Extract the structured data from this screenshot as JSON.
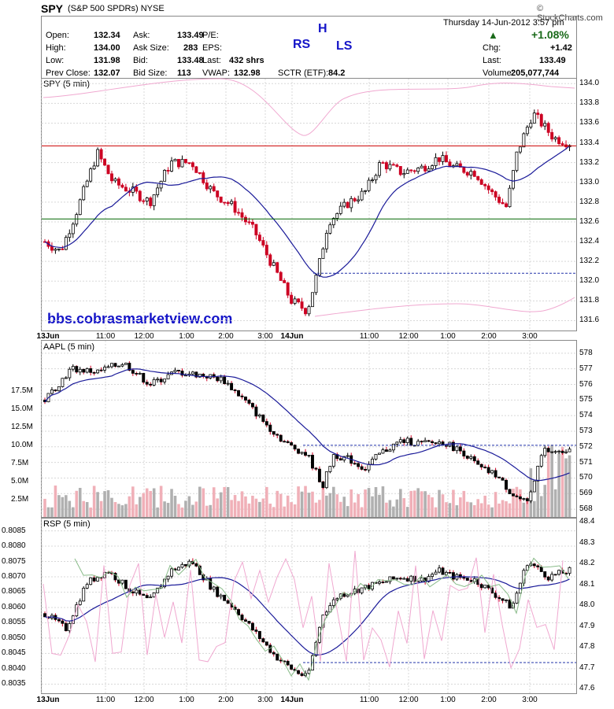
{
  "header": {
    "symbol": "SPY",
    "description": "(S&P 500 SPDRs)",
    "exchange": "NYSE",
    "brand": "© StockCharts.com",
    "datetime": "Thursday  14-Jun-2012  3:57 pm",
    "change_pct": "+1.08%",
    "quote": [
      {
        "label": "Open:",
        "value": "132.34"
      },
      {
        "label": "High:",
        "value": "134.00"
      },
      {
        "label": "Low:",
        "value": "131.98"
      },
      {
        "label": "Prev Close:",
        "value": "132.07"
      },
      {
        "label": "Ask:",
        "value": "133.49"
      },
      {
        "label": "Ask Size:",
        "value": "283"
      },
      {
        "label": "Bid:",
        "value": "133.48"
      },
      {
        "label": "Bid Size:",
        "value": "113"
      },
      {
        "label": "P/E:",
        "value": ""
      },
      {
        "label": "EPS:",
        "value": ""
      },
      {
        "label": "Last:",
        "value": "432 shrs"
      },
      {
        "label": "VWAP:",
        "value": "132.98"
      },
      {
        "label": "SCTR (ETF):",
        "value": "84.2"
      },
      {
        "label": "Chg:",
        "value": "+1.42"
      },
      {
        "label": "Last:",
        "value": "133.49"
      },
      {
        "label": "Volume:",
        "value": "205,077,744"
      }
    ],
    "annotation_rs": "RS",
    "annotation_h": "H",
    "annotation_ls": "LS"
  },
  "watermark": "bbs.cobrasmarketview.com",
  "colors": {
    "up": "#000000",
    "down": "#cc0022",
    "ma": "#1a1a99",
    "hline_red": "#cc0000",
    "hline_green": "#006600",
    "dashed": "#2233aa",
    "pink": "#f0a8d0",
    "green_line": "#88bb88",
    "vol_up": "#b0b0b0",
    "vol_down": "#f0b0b8"
  },
  "chart_data": [
    {
      "type": "candlestick",
      "title": "SPY (5 min)",
      "ylim": [
        131.5,
        134.05
      ],
      "yticks": [
        134.0,
        133.8,
        133.6,
        133.4,
        133.2,
        133.0,
        132.8,
        132.6,
        132.4,
        132.2,
        132.0,
        131.8,
        131.6
      ],
      "x_labels": [
        "13Jun",
        "11:00",
        "12:00",
        "1:00",
        "2:00",
        "3:00",
        "14Jun",
        "11:00",
        "12:00",
        "1:00",
        "2:00",
        "3:00"
      ],
      "horizontal_lines": [
        133.37,
        132.63
      ],
      "dashed_line": 132.08,
      "close_profile": [
        [
          0,
          132.4
        ],
        [
          0.03,
          132.3
        ],
        [
          0.06,
          132.7
        ],
        [
          0.1,
          133.3
        ],
        [
          0.13,
          133.0
        ],
        [
          0.17,
          132.9
        ],
        [
          0.2,
          132.8
        ],
        [
          0.24,
          133.2
        ],
        [
          0.28,
          133.2
        ],
        [
          0.32,
          132.9
        ],
        [
          0.36,
          132.75
        ],
        [
          0.4,
          132.5
        ],
        [
          0.44,
          132.1
        ],
        [
          0.47,
          131.8
        ],
        [
          0.5,
          131.7
        ],
        [
          0.52,
          132.1
        ],
        [
          0.54,
          132.6
        ],
        [
          0.58,
          132.8
        ],
        [
          0.61,
          132.9
        ],
        [
          0.64,
          133.2
        ],
        [
          0.68,
          133.1
        ],
        [
          0.72,
          133.15
        ],
        [
          0.75,
          133.25
        ],
        [
          0.78,
          133.15
        ],
        [
          0.82,
          133.1
        ],
        [
          0.85,
          132.9
        ],
        [
          0.88,
          132.75
        ],
        [
          0.9,
          133.3
        ],
        [
          0.93,
          133.7
        ],
        [
          0.97,
          133.45
        ],
        [
          1.0,
          133.4
        ]
      ]
    },
    {
      "type": "candlestick",
      "title": "AAPL (5 min)",
      "ylim": [
        567.5,
        578.8
      ],
      "yticks": [
        578,
        577,
        576,
        575,
        574,
        573,
        572,
        571,
        570,
        569,
        568
      ],
      "volume_ticks": [
        "17.5M",
        "15.0M",
        "12.5M",
        "10.0M",
        "7.5M",
        "5.0M",
        "2.5M"
      ],
      "dashed_line": 572.1,
      "close_profile": [
        [
          0,
          575.0
        ],
        [
          0.05,
          577.0
        ],
        [
          0.1,
          576.8
        ],
        [
          0.15,
          577.4
        ],
        [
          0.2,
          576.0
        ],
        [
          0.25,
          576.8
        ],
        [
          0.3,
          576.6
        ],
        [
          0.34,
          576.3
        ],
        [
          0.38,
          575.0
        ],
        [
          0.42,
          573.5
        ],
        [
          0.46,
          572.2
        ],
        [
          0.5,
          571.5
        ],
        [
          0.53,
          569.5
        ],
        [
          0.55,
          571.5
        ],
        [
          0.58,
          571.2
        ],
        [
          0.61,
          570.6
        ],
        [
          0.64,
          571.6
        ],
        [
          0.68,
          572.4
        ],
        [
          0.72,
          572.2
        ],
        [
          0.76,
          572.3
        ],
        [
          0.8,
          571.6
        ],
        [
          0.83,
          570.6
        ],
        [
          0.86,
          570.2
        ],
        [
          0.89,
          569.0
        ],
        [
          0.92,
          568.3
        ],
        [
          0.95,
          571.8
        ],
        [
          0.98,
          571.6
        ],
        [
          1.0,
          572.0
        ]
      ]
    },
    {
      "type": "candlestick",
      "title": "RSP (5 min)",
      "ylim": [
        0.8032,
        0.8089
      ],
      "yticks": [
        "0.8085",
        "0.8080",
        "0.8075",
        "0.8070",
        "0.8065",
        "0.8060",
        "0.8055",
        "0.8050",
        "0.8045",
        "0.8040",
        "0.8035"
      ],
      "right_ticks": [
        "48.4",
        "48.3",
        "48.2",
        "48.1",
        "48.0",
        "47.9",
        "47.8",
        "47.7",
        "47.6"
      ],
      "dashed_line": 0.8042,
      "close_profile": [
        [
          0,
          0.8058
        ],
        [
          0.04,
          0.8053
        ],
        [
          0.08,
          0.8068
        ],
        [
          0.12,
          0.8072
        ],
        [
          0.16,
          0.8066
        ],
        [
          0.2,
          0.8062
        ],
        [
          0.24,
          0.8072
        ],
        [
          0.28,
          0.8075
        ],
        [
          0.32,
          0.8066
        ],
        [
          0.36,
          0.806
        ],
        [
          0.4,
          0.8052
        ],
        [
          0.44,
          0.8044
        ],
        [
          0.47,
          0.804
        ],
        [
          0.5,
          0.8037
        ],
        [
          0.53,
          0.8058
        ],
        [
          0.56,
          0.8064
        ],
        [
          0.6,
          0.8066
        ],
        [
          0.64,
          0.8068
        ],
        [
          0.68,
          0.807
        ],
        [
          0.72,
          0.8069
        ],
        [
          0.75,
          0.8072
        ],
        [
          0.78,
          0.807
        ],
        [
          0.82,
          0.8069
        ],
        [
          0.86,
          0.8064
        ],
        [
          0.89,
          0.806
        ],
        [
          0.92,
          0.8075
        ],
        [
          0.96,
          0.807
        ],
        [
          1.0,
          0.8072
        ]
      ]
    }
  ]
}
